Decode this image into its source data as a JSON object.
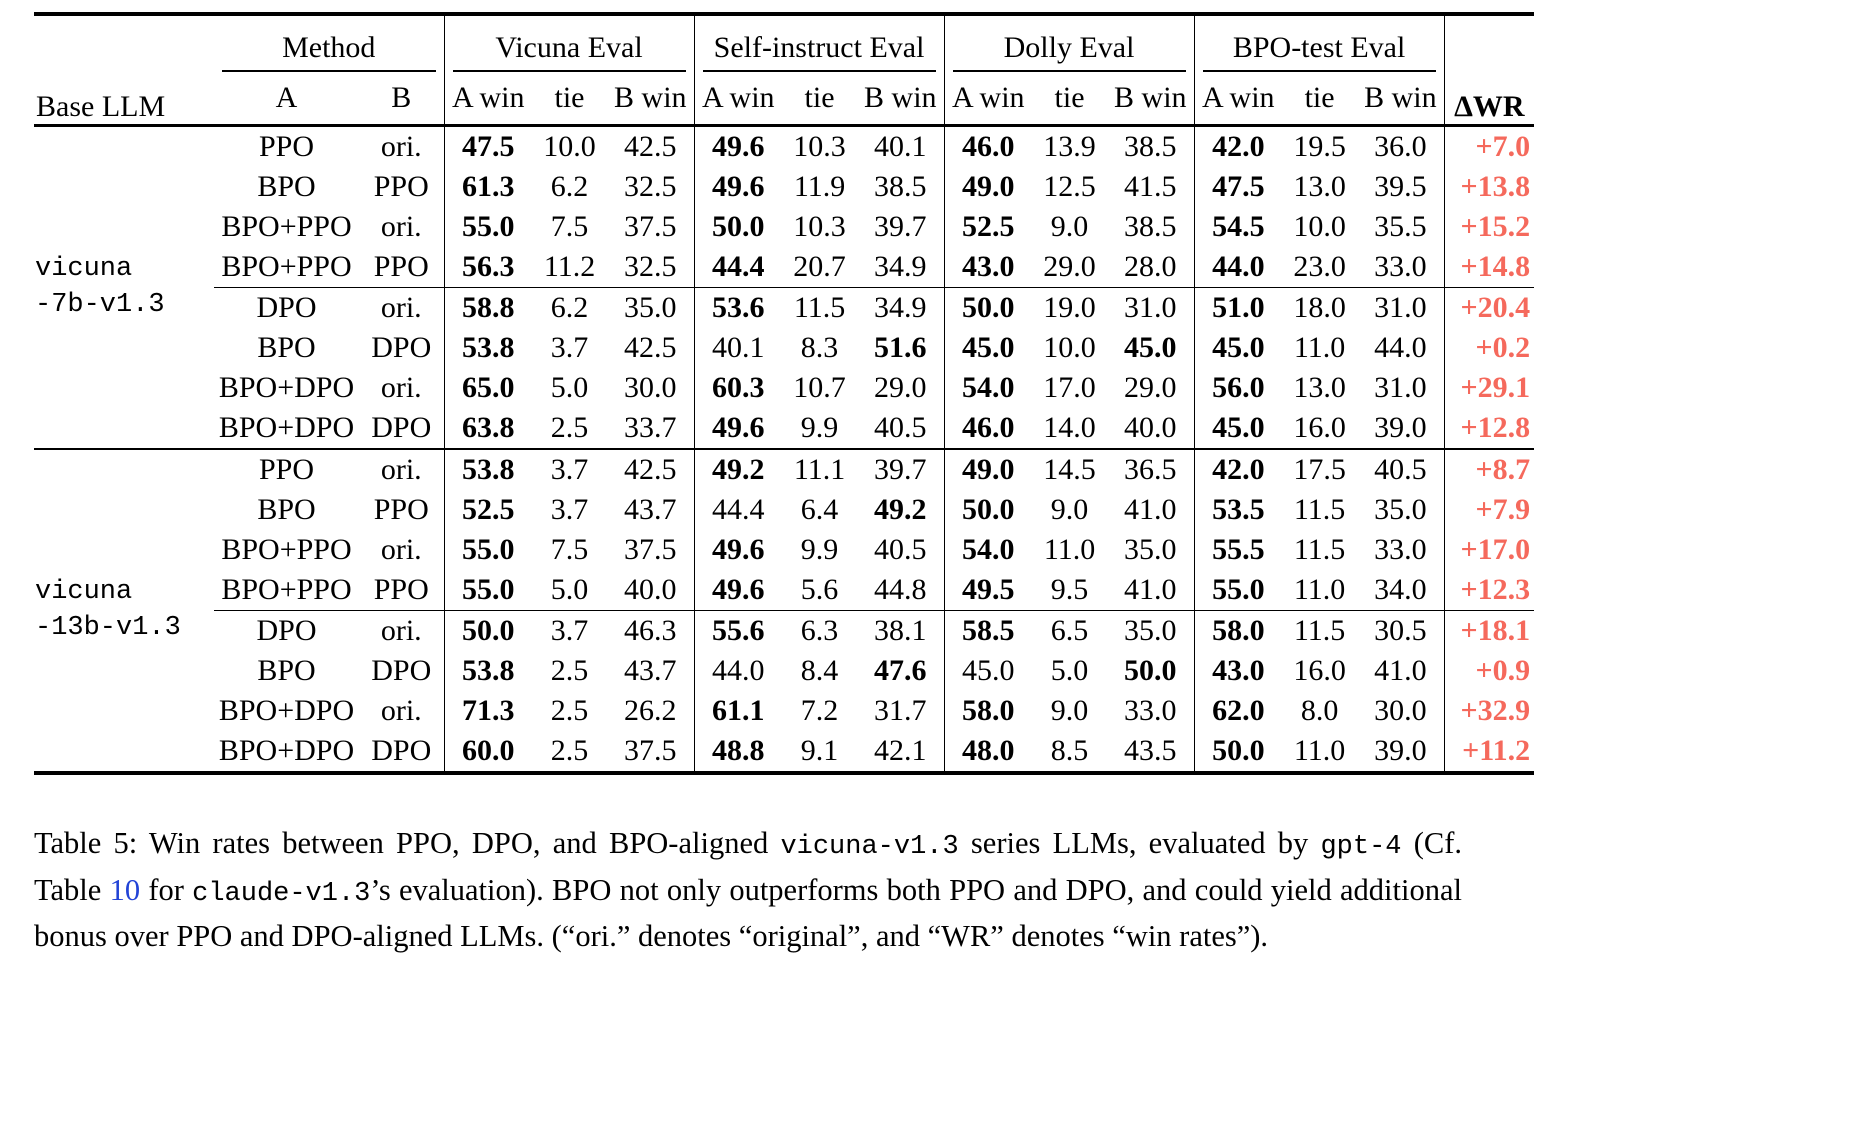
{
  "colors": {
    "delta_wr": "#f5695c",
    "link": "#2243d6",
    "text": "#000000"
  },
  "header": {
    "base_llm": "Base LLM",
    "method": "Method",
    "method_sub": [
      "A",
      "B"
    ],
    "eval_groups": [
      "Vicuna Eval",
      "Self-instruct Eval",
      "Dolly Eval",
      "BPO-test Eval"
    ],
    "sub_cols": [
      "A win",
      "tie",
      "B win"
    ],
    "delta_wr": "ΔWR"
  },
  "groups": [
    {
      "base_llm_lines": [
        "vicuna",
        "-7b-v1.3"
      ],
      "blocks": [
        {
          "rows": [
            {
              "a": "PPO",
              "b": "ori.",
              "vals": [
                "47.5",
                "10.0",
                "42.5",
                "49.6",
                "10.3",
                "40.1",
                "46.0",
                "13.9",
                "38.5",
                "42.0",
                "19.5",
                "36.0"
              ],
              "bold": [
                0,
                3,
                6,
                9
              ],
              "dwr": "+7.0"
            },
            {
              "a": "BPO",
              "b": "PPO",
              "vals": [
                "61.3",
                "6.2",
                "32.5",
                "49.6",
                "11.9",
                "38.5",
                "49.0",
                "12.5",
                "41.5",
                "47.5",
                "13.0",
                "39.5"
              ],
              "bold": [
                0,
                3,
                6,
                9
              ],
              "dwr": "+13.8"
            },
            {
              "a": "BPO+PPO",
              "b": "ori.",
              "vals": [
                "55.0",
                "7.5",
                "37.5",
                "50.0",
                "10.3",
                "39.7",
                "52.5",
                "9.0",
                "38.5",
                "54.5",
                "10.0",
                "35.5"
              ],
              "bold": [
                0,
                3,
                6,
                9
              ],
              "dwr": "+15.2"
            },
            {
              "a": "BPO+PPO",
              "b": "PPO",
              "vals": [
                "56.3",
                "11.2",
                "32.5",
                "44.4",
                "20.7",
                "34.9",
                "43.0",
                "29.0",
                "28.0",
                "44.0",
                "23.0",
                "33.0"
              ],
              "bold": [
                0,
                3,
                6,
                9
              ],
              "dwr": "+14.8"
            }
          ]
        },
        {
          "rows": [
            {
              "a": "DPO",
              "b": "ori.",
              "vals": [
                "58.8",
                "6.2",
                "35.0",
                "53.6",
                "11.5",
                "34.9",
                "50.0",
                "19.0",
                "31.0",
                "51.0",
                "18.0",
                "31.0"
              ],
              "bold": [
                0,
                3,
                6,
                9
              ],
              "dwr": "+20.4"
            },
            {
              "a": "BPO",
              "b": "DPO",
              "vals": [
                "53.8",
                "3.7",
                "42.5",
                "40.1",
                "8.3",
                "51.6",
                "45.0",
                "10.0",
                "45.0",
                "45.0",
                "11.0",
                "44.0"
              ],
              "bold": [
                0,
                5,
                6,
                8,
                9
              ],
              "dwr": "+0.2"
            },
            {
              "a": "BPO+DPO",
              "b": "ori.",
              "vals": [
                "65.0",
                "5.0",
                "30.0",
                "60.3",
                "10.7",
                "29.0",
                "54.0",
                "17.0",
                "29.0",
                "56.0",
                "13.0",
                "31.0"
              ],
              "bold": [
                0,
                3,
                6,
                9
              ],
              "dwr": "+29.1"
            },
            {
              "a": "BPO+DPO",
              "b": "DPO",
              "vals": [
                "63.8",
                "2.5",
                "33.7",
                "49.6",
                "9.9",
                "40.5",
                "46.0",
                "14.0",
                "40.0",
                "45.0",
                "16.0",
                "39.0"
              ],
              "bold": [
                0,
                3,
                6,
                9
              ],
              "dwr": "+12.8"
            }
          ]
        }
      ]
    },
    {
      "base_llm_lines": [
        "vicuna",
        "-13b-v1.3"
      ],
      "blocks": [
        {
          "rows": [
            {
              "a": "PPO",
              "b": "ori.",
              "vals": [
                "53.8",
                "3.7",
                "42.5",
                "49.2",
                "11.1",
                "39.7",
                "49.0",
                "14.5",
                "36.5",
                "42.0",
                "17.5",
                "40.5"
              ],
              "bold": [
                0,
                3,
                6,
                9
              ],
              "dwr": "+8.7"
            },
            {
              "a": "BPO",
              "b": "PPO",
              "vals": [
                "52.5",
                "3.7",
                "43.7",
                "44.4",
                "6.4",
                "49.2",
                "50.0",
                "9.0",
                "41.0",
                "53.5",
                "11.5",
                "35.0"
              ],
              "bold": [
                0,
                5,
                6,
                9
              ],
              "dwr": "+7.9"
            },
            {
              "a": "BPO+PPO",
              "b": "ori.",
              "vals": [
                "55.0",
                "7.5",
                "37.5",
                "49.6",
                "9.9",
                "40.5",
                "54.0",
                "11.0",
                "35.0",
                "55.5",
                "11.5",
                "33.0"
              ],
              "bold": [
                0,
                3,
                6,
                9
              ],
              "dwr": "+17.0"
            },
            {
              "a": "BPO+PPO",
              "b": "PPO",
              "vals": [
                "55.0",
                "5.0",
                "40.0",
                "49.6",
                "5.6",
                "44.8",
                "49.5",
                "9.5",
                "41.0",
                "55.0",
                "11.0",
                "34.0"
              ],
              "bold": [
                0,
                3,
                6,
                9
              ],
              "dwr": "+12.3"
            }
          ]
        },
        {
          "rows": [
            {
              "a": "DPO",
              "b": "ori.",
              "vals": [
                "50.0",
                "3.7",
                "46.3",
                "55.6",
                "6.3",
                "38.1",
                "58.5",
                "6.5",
                "35.0",
                "58.0",
                "11.5",
                "30.5"
              ],
              "bold": [
                0,
                3,
                6,
                9
              ],
              "dwr": "+18.1"
            },
            {
              "a": "BPO",
              "b": "DPO",
              "vals": [
                "53.8",
                "2.5",
                "43.7",
                "44.0",
                "8.4",
                "47.6",
                "45.0",
                "5.0",
                "50.0",
                "43.0",
                "16.0",
                "41.0"
              ],
              "bold": [
                0,
                5,
                8,
                9
              ],
              "dwr": "+0.9"
            },
            {
              "a": "BPO+DPO",
              "b": "ori.",
              "vals": [
                "71.3",
                "2.5",
                "26.2",
                "61.1",
                "7.2",
                "31.7",
                "58.0",
                "9.0",
                "33.0",
                "62.0",
                "8.0",
                "30.0"
              ],
              "bold": [
                0,
                3,
                6,
                9
              ],
              "dwr": "+32.9"
            },
            {
              "a": "BPO+DPO",
              "b": "DPO",
              "vals": [
                "60.0",
                "2.5",
                "37.5",
                "48.8",
                "9.1",
                "42.1",
                "48.0",
                "8.5",
                "43.5",
                "50.0",
                "11.0",
                "39.0"
              ],
              "bold": [
                0,
                3,
                6,
                9
              ],
              "dwr": "+11.2"
            }
          ]
        }
      ]
    }
  ],
  "caption": {
    "segments": [
      {
        "t": "Table 5: Win rates between PPO, DPO, and BPO-aligned ",
        "s": "normal"
      },
      {
        "t": "vicuna-v1.3",
        "s": "mono"
      },
      {
        "t": " series LLMs, evaluated by ",
        "s": "normal"
      },
      {
        "t": "gpt-4",
        "s": "mono"
      },
      {
        "t": " (Cf. Table ",
        "s": "normal"
      },
      {
        "t": "10",
        "s": "link"
      },
      {
        "t": " for ",
        "s": "normal"
      },
      {
        "t": "claude-v1.3",
        "s": "mono"
      },
      {
        "t": "’s evaluation). BPO not only outperforms both PPO and DPO, and could yield additional bonus over PPO and DPO-aligned LLMs. (“ori.” denotes “original”, and “WR” denotes “win rates”).",
        "s": "normal"
      }
    ]
  }
}
